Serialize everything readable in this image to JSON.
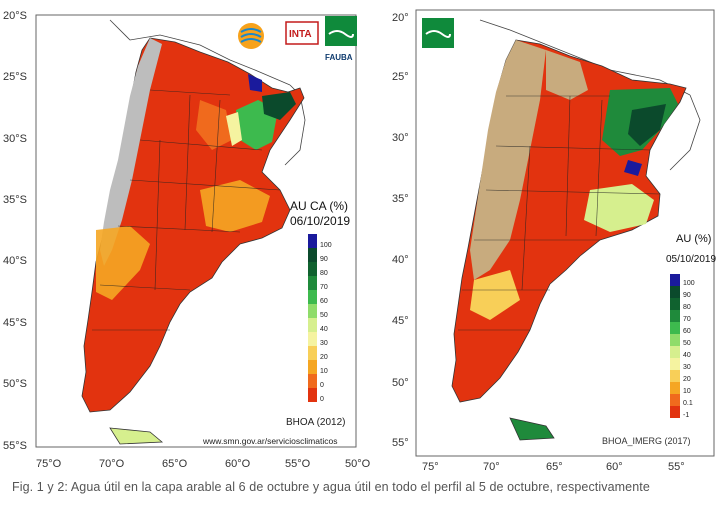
{
  "map1": {
    "title": "AU CA (%)",
    "date": "06/10/2019",
    "source": "BHOA (2012)",
    "url": "www.smn.gov.ar/serviciosclimaticos",
    "logos": [
      "INTA",
      "FAUBA"
    ],
    "lat_labels": [
      "20°S",
      "25°S",
      "30°S",
      "35°S",
      "40°S",
      "45°S",
      "50°S",
      "55°S"
    ],
    "lon_labels": [
      "75°O",
      "70°O",
      "65°O",
      "60°O",
      "55°O",
      "50°O"
    ],
    "legend": [
      {
        "label": "100",
        "color": "#1a1a9c"
      },
      {
        "label": "90",
        "color": "#0b4a2c"
      },
      {
        "label": "80",
        "color": "#10622f"
      },
      {
        "label": "70",
        "color": "#1f8a3b"
      },
      {
        "label": "60",
        "color": "#3dba4e"
      },
      {
        "label": "50",
        "color": "#8fdc6a"
      },
      {
        "label": "40",
        "color": "#d6ef8e"
      },
      {
        "label": "30",
        "color": "#f5f3a0"
      },
      {
        "label": "20",
        "color": "#f8cf58"
      },
      {
        "label": "10",
        "color": "#f5a623"
      },
      {
        "label": "0",
        "color": "#f06a1d"
      },
      {
        "label": "0",
        "color": "#e2330f"
      }
    ]
  },
  "map2": {
    "title": "AU (%)",
    "date": "05/10/2019",
    "source": "BHOA_IMERG (2017)",
    "lat_labels": [
      "20°",
      "25°",
      "30°",
      "35°",
      "40°",
      "45°",
      "50°",
      "55°"
    ],
    "lon_labels": [
      "75°",
      "70°",
      "65°",
      "60°",
      "55°"
    ],
    "legend": [
      {
        "label": "100",
        "color": "#1a1a9c"
      },
      {
        "label": "90",
        "color": "#0b4a2c"
      },
      {
        "label": "80",
        "color": "#10622f"
      },
      {
        "label": "70",
        "color": "#1f8a3b"
      },
      {
        "label": "60",
        "color": "#3dba4e"
      },
      {
        "label": "50",
        "color": "#8fdc6a"
      },
      {
        "label": "40",
        "color": "#d6ef8e"
      },
      {
        "label": "30",
        "color": "#f5f3a0"
      },
      {
        "label": "20",
        "color": "#f8cf58"
      },
      {
        "label": "10",
        "color": "#f5a623"
      },
      {
        "label": "0.1",
        "color": "#f06a1d"
      },
      {
        "label": "-1",
        "color": "#e2330f"
      }
    ]
  },
  "caption": "Fig. 1 y 2: Agua útil en la capa arable al 6 de octubre y agua útil en todo el perfil al 5 de octubre, respectivamente",
  "colors": {
    "dry": "#e2330f",
    "grey": "#bdbdbd",
    "tan": "#c8ab7e"
  }
}
